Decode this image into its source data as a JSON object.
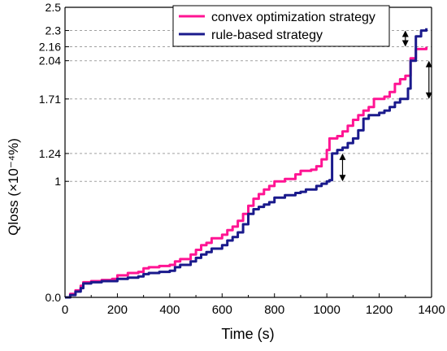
{
  "chart_data": {
    "type": "line",
    "title": "",
    "xlabel": "Time (s)",
    "ylabel": "Qloss (×10⁻⁴%)",
    "xlim": [
      0,
      1400
    ],
    "ylim": [
      0,
      2.5
    ],
    "xticks": [
      0,
      200,
      400,
      600,
      800,
      1000,
      1200,
      1400
    ],
    "yticks": [
      0.0,
      1,
      1.24,
      1.71,
      2.04,
      2.16,
      2.3,
      2.5
    ],
    "ytick_labels": [
      "0.0",
      "1",
      "1.24",
      "1.71",
      "2.04",
      "2.16",
      "2.3",
      "2.5"
    ],
    "reference_lines_y": [
      1,
      1.24,
      1.71,
      2.04,
      2.16,
      2.3
    ],
    "grid": false,
    "legend_position": "top-right",
    "series": [
      {
        "name": "convex optimization strategy",
        "color": "#ff1493",
        "x": [
          0,
          20,
          40,
          60,
          70,
          100,
          140,
          180,
          200,
          240,
          280,
          300,
          320,
          360,
          400,
          420,
          440,
          480,
          500,
          520,
          540,
          560,
          600,
          620,
          640,
          660,
          680,
          700,
          720,
          740,
          760,
          780,
          800,
          840,
          880,
          900,
          920,
          940,
          960,
          980,
          1000,
          1010,
          1040,
          1060,
          1080,
          1100,
          1120,
          1140,
          1160,
          1180,
          1200,
          1220,
          1240,
          1260,
          1280,
          1300,
          1320,
          1340,
          1360,
          1380
        ],
        "y": [
          0.0,
          0.03,
          0.06,
          0.1,
          0.13,
          0.14,
          0.15,
          0.16,
          0.19,
          0.21,
          0.22,
          0.25,
          0.26,
          0.27,
          0.28,
          0.31,
          0.33,
          0.37,
          0.41,
          0.45,
          0.47,
          0.51,
          0.54,
          0.58,
          0.61,
          0.66,
          0.72,
          0.79,
          0.85,
          0.89,
          0.93,
          0.96,
          1.0,
          1.02,
          1.06,
          1.09,
          1.09,
          1.1,
          1.13,
          1.19,
          1.27,
          1.37,
          1.39,
          1.43,
          1.48,
          1.53,
          1.57,
          1.61,
          1.64,
          1.71,
          1.71,
          1.73,
          1.77,
          1.84,
          1.88,
          1.91,
          2.06,
          2.14,
          2.14,
          2.16
        ]
      },
      {
        "name": "rule-based strategy",
        "color": "#1a1a8c",
        "x": [
          0,
          20,
          40,
          60,
          70,
          100,
          140,
          180,
          200,
          240,
          280,
          300,
          320,
          360,
          400,
          420,
          440,
          480,
          500,
          520,
          540,
          560,
          600,
          620,
          640,
          660,
          680,
          700,
          720,
          740,
          760,
          780,
          800,
          840,
          880,
          900,
          920,
          940,
          960,
          980,
          1000,
          1010,
          1020,
          1040,
          1060,
          1080,
          1100,
          1120,
          1140,
          1160,
          1180,
          1200,
          1220,
          1240,
          1260,
          1280,
          1300,
          1310,
          1320,
          1340,
          1360,
          1380
        ],
        "y": [
          0.0,
          0.02,
          0.05,
          0.08,
          0.12,
          0.13,
          0.14,
          0.14,
          0.16,
          0.17,
          0.18,
          0.2,
          0.21,
          0.22,
          0.23,
          0.26,
          0.28,
          0.31,
          0.34,
          0.37,
          0.39,
          0.42,
          0.45,
          0.49,
          0.52,
          0.56,
          0.63,
          0.72,
          0.76,
          0.78,
          0.8,
          0.82,
          0.86,
          0.88,
          0.9,
          0.91,
          0.93,
          0.93,
          0.96,
          0.98,
          1.0,
          1.01,
          1.24,
          1.27,
          1.29,
          1.33,
          1.37,
          1.44,
          1.54,
          1.57,
          1.57,
          1.59,
          1.61,
          1.64,
          1.68,
          1.71,
          1.71,
          1.8,
          2.04,
          2.25,
          2.3,
          2.32
        ]
      }
    ]
  }
}
